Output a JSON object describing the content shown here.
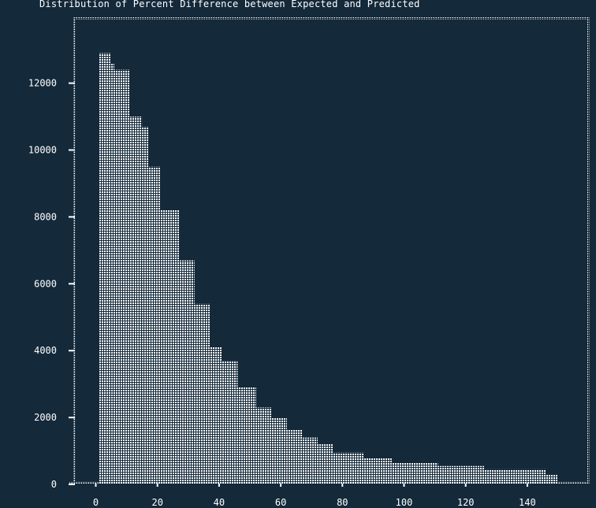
{
  "chart_data": {
    "type": "bar",
    "title": "Distribution of Percent Difference between Expected and Predicted",
    "xlabel": "",
    "ylabel": "",
    "xlim": [
      -8,
      160
    ],
    "ylim": [
      0,
      13500
    ],
    "x_ticks": [
      0,
      20,
      40,
      60,
      80,
      100,
      120,
      140
    ],
    "y_ticks": [
      0,
      2000,
      4000,
      6000,
      8000,
      10000,
      12000
    ],
    "grid": false,
    "bins": [
      {
        "x0": 1,
        "x1": 5,
        "value": 12900
      },
      {
        "x0": 5,
        "x1": 6,
        "value": 12600
      },
      {
        "x0": 6,
        "x1": 11,
        "value": 12400
      },
      {
        "x0": 11,
        "x1": 15,
        "value": 11000
      },
      {
        "x0": 15,
        "x1": 17,
        "value": 10700
      },
      {
        "x0": 17,
        "x1": 21,
        "value": 9500
      },
      {
        "x0": 21,
        "x1": 27,
        "value": 8200
      },
      {
        "x0": 27,
        "x1": 32,
        "value": 6700
      },
      {
        "x0": 32,
        "x1": 37,
        "value": 5400
      },
      {
        "x0": 37,
        "x1": 41,
        "value": 4100
      },
      {
        "x0": 41,
        "x1": 46,
        "value": 3700
      },
      {
        "x0": 46,
        "x1": 52,
        "value": 2900
      },
      {
        "x0": 52,
        "x1": 57,
        "value": 2300
      },
      {
        "x0": 57,
        "x1": 62,
        "value": 2000
      },
      {
        "x0": 62,
        "x1": 67,
        "value": 1650
      },
      {
        "x0": 67,
        "x1": 72,
        "value": 1400
      },
      {
        "x0": 72,
        "x1": 77,
        "value": 1200
      },
      {
        "x0": 77,
        "x1": 87,
        "value": 950
      },
      {
        "x0": 87,
        "x1": 96,
        "value": 780
      },
      {
        "x0": 96,
        "x1": 111,
        "value": 650
      },
      {
        "x0": 111,
        "x1": 126,
        "value": 550
      },
      {
        "x0": 126,
        "x1": 146,
        "value": 450
      },
      {
        "x0": 146,
        "x1": 150,
        "value": 300
      }
    ]
  },
  "colors": {
    "background": "#14293a",
    "foreground": "#ffffff"
  }
}
